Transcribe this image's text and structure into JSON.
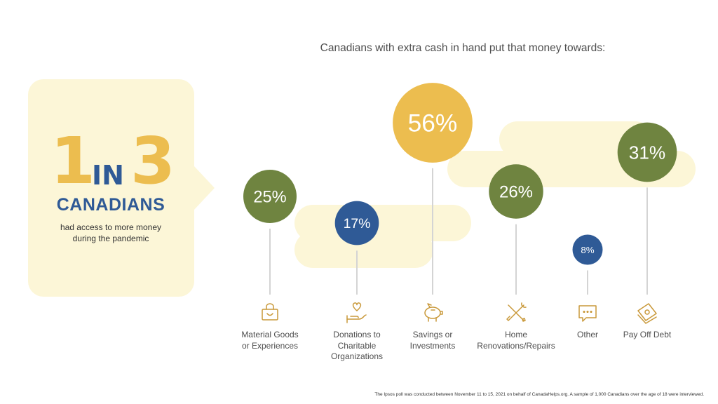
{
  "colors": {
    "gold": "#ecbd4f",
    "olive": "#6f8440",
    "navy": "#2f5a96",
    "cream": "#fcf6d7",
    "stem": "#d4d4d4",
    "icon": "#c9993a",
    "text": "#4f4f4f"
  },
  "callout": {
    "number_one": "1",
    "word_in": "IN",
    "number_three": "3",
    "headline": "CANADIANS",
    "line1": "had access to more money",
    "line2": "during the pandemic"
  },
  "footnote": "The Ipsos poll was conducted between November 11 to 15, 2021 on behalf of CanadaHelps.org. A sample of 1,000 Canadians over the age of 18 were interviewed.",
  "chart_data": {
    "type": "bubble",
    "title": "Canadians with extra cash in hand put that money towards:",
    "unit": "%",
    "categories": [
      "Material Goods\nor Experiences",
      "Donations to\nCharitable\nOrganizations",
      "Savings or\nInvestments",
      "Home\nRenovations/Repairs",
      "Other",
      "Pay Off Debt"
    ],
    "values": [
      25,
      17,
      56,
      26,
      8,
      31
    ],
    "value_labels": [
      "25%",
      "17%",
      "56%",
      "26%",
      "8%",
      "31%"
    ],
    "bubble_colors": [
      "olive",
      "navy",
      "gold",
      "olive",
      "navy",
      "olive"
    ],
    "icons": [
      "shopping-bag-icon",
      "heart-in-hand-icon",
      "piggy-bank-icon",
      "tools-icon",
      "speech-bubble-icon",
      "cash-icon"
    ]
  }
}
